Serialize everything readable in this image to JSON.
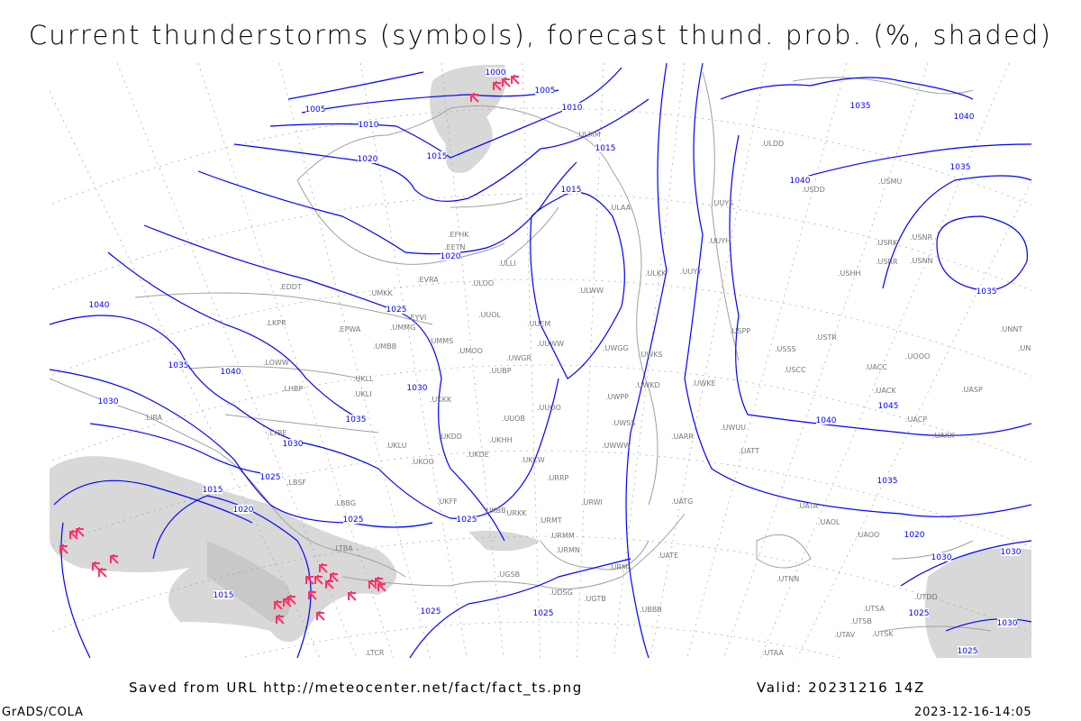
{
  "title": "Current thunderstorms (symbols), forecast thund. prob. (%, shaded)",
  "footer": {
    "saved_from": "Saved from URL http://meteocenter.net/fact/fact_ts.png",
    "valid": "Valid: 20231216 14Z",
    "software": "GrADS/COLA",
    "timestamp": "2023-12-16-14:05"
  },
  "colors": {
    "isobar": "#0000ff",
    "coastline": "#a0a0a0",
    "thunderstorm_symbol": "#ff3366",
    "probability_shading": "#d8d8d8",
    "station_label": "#777777"
  },
  "isobar_labels": [
    "1000",
    "1005",
    "1005",
    "1010",
    "1010",
    "1015",
    "1015",
    "1020",
    "1015",
    "1020",
    "1025",
    "1025",
    "1030",
    "1030",
    "1035",
    "1040",
    "1040",
    "1035",
    "1030",
    "1035",
    "1040",
    "1035",
    "1040",
    "1045",
    "1035",
    "1030",
    "1025",
    "1020",
    "1015",
    "1015",
    "1020",
    "1025",
    "1025",
    "1030",
    "1035",
    "1040",
    "1030",
    "1025",
    "1025",
    "1025"
  ],
  "stations": [
    "ULLI",
    "ULAA",
    "ULMM",
    "ULDD",
    "UUYS",
    "UUYH",
    "ULKK",
    "UUYY",
    "ULWW",
    "UUEM",
    "UUWW",
    "UWGG",
    "UWKS",
    "UWKE",
    "UWKD",
    "UWPP",
    "UWSS",
    "UWWW",
    "UWUU",
    "USPP",
    "USSS",
    "USCC",
    "USTR",
    "USHH",
    "USMU",
    "USDD",
    "USRR",
    "USRK",
    "USNR",
    "USNN",
    "UOOO",
    "UNNT",
    "UNBB",
    "UACC",
    "UAKK",
    "UASP",
    "UACK",
    "UACP",
    "UAOO",
    "UATT",
    "UARR",
    "UATG",
    "UATA",
    "UAOL",
    "UATE",
    "UTNN",
    "UTSA",
    "UTSB",
    "UTAV",
    "UTSK",
    "UTDD",
    "UTAA",
    "URRP",
    "URKK",
    "URMT",
    "URMM",
    "URMN",
    "URML",
    "UBBB",
    "UGSB",
    "UDSG",
    "UGTB",
    "UUBP",
    "UUOO",
    "UUOB",
    "UUOL",
    "UKDD",
    "UKDE",
    "UKHH",
    "UKOO",
    "UKFF",
    "UKBB",
    "UKKK",
    "UKLL",
    "UKLI",
    "UMMS",
    "UMOO",
    "UMMG",
    "UMBB",
    "UMKK",
    "EYVI",
    "EVRA",
    "EETN",
    "EFHK",
    "EPWA",
    "EDDT",
    "LKPR",
    "LOWW",
    "LHBP",
    "LIRA",
    "LYBE",
    "LBSF",
    "LBBG",
    "LTBA",
    "LTCR",
    "ULOO",
    "UKCW",
    "URWI",
    "UKLU",
    "UWGR"
  ],
  "thunderstorms": {
    "count": 30,
    "symbol": "thunderstorm-symbol"
  },
  "map": {
    "projection": "polar stereographic",
    "grid": true
  }
}
